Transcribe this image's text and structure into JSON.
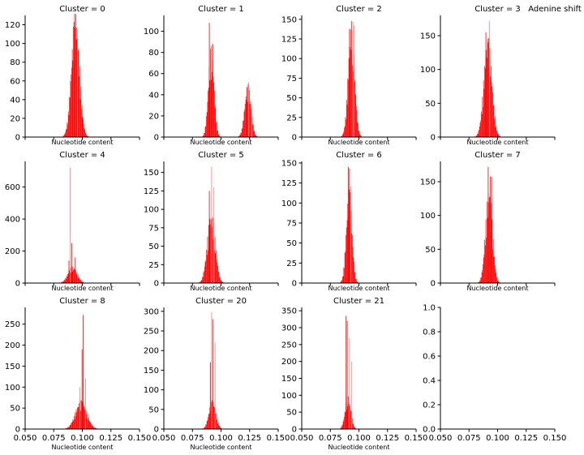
{
  "figure_label": "Adenine shift",
  "colors": {
    "bar": "#ff0000",
    "bar_light": "#f08080",
    "axis": "#000000"
  },
  "chart_data": [
    {
      "type": "bar",
      "title": "Cluster = 0",
      "xlabel": "Nucleotide content",
      "xlim": [
        0.05,
        0.15
      ],
      "ylim": [
        0,
        130
      ],
      "yticks": [
        0,
        20,
        40,
        60,
        80,
        100,
        120
      ],
      "xticks": [],
      "series": [
        {
          "peaks": [
            {
              "mu": 0.094,
              "sigma": 0.0035,
              "height": 108
            }
          ],
          "spikes": [
            {
              "x": 0.0925,
              "h": 123,
              "color": "dark"
            },
            {
              "x": 0.0935,
              "h": 117,
              "color": "dark"
            },
            {
              "x": 0.0955,
              "h": 104,
              "color": "light"
            }
          ]
        }
      ]
    },
    {
      "type": "bar",
      "title": "Cluster = 1",
      "xlabel": "Nucleotide content",
      "xlim": [
        0.05,
        0.15
      ],
      "ylim": [
        0,
        115
      ],
      "yticks": [
        0,
        20,
        40,
        60,
        80,
        100
      ],
      "xticks": [],
      "series": [
        {
          "peaks": [
            {
              "mu": 0.0915,
              "sigma": 0.0025,
              "height": 70
            },
            {
              "mu": 0.1235,
              "sigma": 0.0028,
              "height": 40
            }
          ],
          "spikes": [
            {
              "x": 0.0895,
              "h": 108,
              "color": "dark"
            },
            {
              "x": 0.0925,
              "h": 88,
              "color": "dark"
            },
            {
              "x": 0.1225,
              "h": 47,
              "color": "dark"
            },
            {
              "x": 0.124,
              "h": 52,
              "color": "light"
            },
            {
              "x": 0.1265,
              "h": 30,
              "color": "light"
            }
          ]
        }
      ]
    },
    {
      "type": "bar",
      "title": "Cluster = 2",
      "xlabel": "Nucleotide content",
      "xlim": [
        0.05,
        0.15
      ],
      "ylim": [
        0,
        155
      ],
      "yticks": [
        0,
        25,
        50,
        75,
        100,
        125,
        150
      ],
      "xticks": [],
      "series": [
        {
          "peaks": [
            {
              "mu": 0.0935,
              "sigma": 0.0028,
              "height": 120
            }
          ],
          "spikes": [
            {
              "x": 0.0915,
              "h": 138,
              "color": "dark"
            },
            {
              "x": 0.0945,
              "h": 147,
              "color": "light"
            },
            {
              "x": 0.0955,
              "h": 142,
              "color": "light"
            }
          ]
        }
      ]
    },
    {
      "type": "bar",
      "title": "Cluster = 3",
      "xlabel": "Nucleotide content",
      "xlim": [
        0.05,
        0.15
      ],
      "ylim": [
        0,
        180
      ],
      "yticks": [
        0,
        50,
        100,
        150
      ],
      "xticks": [],
      "series": [
        {
          "peaks": [
            {
              "mu": 0.0915,
              "sigma": 0.0035,
              "height": 120
            }
          ],
          "spikes": [
            {
              "x": 0.0895,
              "h": 155,
              "color": "dark"
            },
            {
              "x": 0.0925,
              "h": 172,
              "color": "light"
            },
            {
              "x": 0.0915,
              "h": 140,
              "color": "dark"
            }
          ]
        }
      ]
    },
    {
      "type": "bar",
      "title": "Cluster = 4",
      "xlabel": "Nucleotide content",
      "xlim": [
        0.05,
        0.15
      ],
      "ylim": [
        0,
        760
      ],
      "yticks": [
        0,
        200,
        400,
        600
      ],
      "xticks": [],
      "series": [
        {
          "peaks": [
            {
              "mu": 0.0915,
              "sigma": 0.004,
              "height": 85
            }
          ],
          "spikes": [
            {
              "x": 0.089,
              "h": 720,
              "color": "light"
            },
            {
              "x": 0.0905,
              "h": 250,
              "color": "dark"
            },
            {
              "x": 0.0935,
              "h": 160,
              "color": "dark"
            },
            {
              "x": 0.088,
              "h": 140,
              "color": "dark"
            }
          ]
        }
      ]
    },
    {
      "type": "bar",
      "title": "Cluster = 5",
      "xlabel": "Nucleotide content",
      "xlim": [
        0.05,
        0.15
      ],
      "ylim": [
        0,
        165
      ],
      "yticks": [
        0,
        25,
        50,
        75,
        100,
        125,
        150
      ],
      "xticks": [],
      "series": [
        {
          "peaks": [
            {
              "mu": 0.0915,
              "sigma": 0.0035,
              "height": 78
            }
          ],
          "spikes": [
            {
              "x": 0.0915,
              "h": 158,
              "color": "light"
            },
            {
              "x": 0.0895,
              "h": 125,
              "color": "dark"
            },
            {
              "x": 0.0935,
              "h": 130,
              "color": "light"
            }
          ]
        }
      ]
    },
    {
      "type": "bar",
      "title": "Cluster = 6",
      "xlabel": "Nucleotide content",
      "xlim": [
        0.05,
        0.15
      ],
      "ylim": [
        0,
        152
      ],
      "yticks": [
        0,
        25,
        50,
        75,
        100,
        125,
        150
      ],
      "xticks": [],
      "series": [
        {
          "peaks": [
            {
              "mu": 0.0915,
              "sigma": 0.0025,
              "height": 95
            }
          ],
          "spikes": [
            {
              "x": 0.0905,
              "h": 145,
              "color": "dark"
            },
            {
              "x": 0.0915,
              "h": 143,
              "color": "dark"
            },
            {
              "x": 0.0925,
              "h": 120,
              "color": "light"
            }
          ]
        }
      ]
    },
    {
      "type": "bar",
      "title": "Cluster = 7",
      "xlabel": "Nucleotide content",
      "xlim": [
        0.05,
        0.15
      ],
      "ylim": [
        0,
        180
      ],
      "yticks": [
        0,
        50,
        100,
        150
      ],
      "xticks": [],
      "series": [
        {
          "peaks": [
            {
              "mu": 0.0925,
              "sigma": 0.003,
              "height": 115
            }
          ],
          "spikes": [
            {
              "x": 0.0915,
              "h": 172,
              "color": "dark"
            },
            {
              "x": 0.0935,
              "h": 158,
              "color": "dark"
            },
            {
              "x": 0.0945,
              "h": 157,
              "color": "dark"
            }
          ]
        }
      ]
    },
    {
      "type": "bar",
      "title": "Cluster = 8",
      "xlabel": "Nucleotide content",
      "xlim": [
        0.05,
        0.15
      ],
      "ylim": [
        0,
        290
      ],
      "yticks": [
        0,
        50,
        100,
        150,
        200,
        250
      ],
      "xticks": [
        0.05,
        0.075,
        0.1,
        0.125,
        0.15
      ],
      "series": [
        {
          "peaks": [
            {
              "mu": 0.099,
              "sigma": 0.005,
              "height": 55
            }
          ],
          "spikes": [
            {
              "x": 0.1005,
              "h": 272,
              "color": "dark"
            },
            {
              "x": 0.0995,
              "h": 190,
              "color": "dark"
            },
            {
              "x": 0.1025,
              "h": 120,
              "color": "light"
            },
            {
              "x": 0.0975,
              "h": 100,
              "color": "light"
            }
          ]
        }
      ]
    },
    {
      "type": "bar",
      "title": "Cluster = 20",
      "xlabel": "Nucleotide content",
      "xlim": [
        0.05,
        0.15
      ],
      "ylim": [
        0,
        310
      ],
      "yticks": [
        0,
        50,
        100,
        150,
        200,
        250,
        300
      ],
      "xticks": [
        0.05,
        0.075,
        0.1,
        0.125,
        0.15
      ],
      "series": [
        {
          "peaks": [
            {
              "mu": 0.0925,
              "sigma": 0.003,
              "height": 60
            }
          ],
          "spikes": [
            {
              "x": 0.0915,
              "h": 298,
              "color": "light"
            },
            {
              "x": 0.0925,
              "h": 280,
              "color": "dark"
            },
            {
              "x": 0.0945,
              "h": 220,
              "color": "light"
            },
            {
              "x": 0.0905,
              "h": 170,
              "color": "dark"
            }
          ]
        }
      ]
    },
    {
      "type": "bar",
      "title": "Cluster = 21",
      "xlabel": "Nucleotide content",
      "xlim": [
        0.05,
        0.15
      ],
      "ylim": [
        0,
        360
      ],
      "yticks": [
        0,
        50,
        100,
        150,
        200,
        250,
        300,
        350
      ],
      "xticks": [
        0.05,
        0.075,
        0.1,
        0.125,
        0.15
      ],
      "series": [
        {
          "peaks": [
            {
              "mu": 0.0905,
              "sigma": 0.0025,
              "height": 80
            }
          ],
          "spikes": [
            {
              "x": 0.0885,
              "h": 335,
              "color": "dark"
            },
            {
              "x": 0.0895,
              "h": 320,
              "color": "dark"
            },
            {
              "x": 0.0915,
              "h": 270,
              "color": "light"
            },
            {
              "x": 0.0935,
              "h": 200,
              "color": "light"
            }
          ]
        }
      ]
    },
    {
      "type": "bar",
      "title": "",
      "xlabel": "",
      "xlim": [
        0.05,
        0.15
      ],
      "ylim": [
        0,
        1.0
      ],
      "yticks": [
        0.0,
        0.2,
        0.4,
        0.6,
        0.8,
        1.0
      ],
      "xticks": [
        0.05,
        0.075,
        0.1,
        0.125,
        0.15
      ],
      "series": []
    }
  ]
}
